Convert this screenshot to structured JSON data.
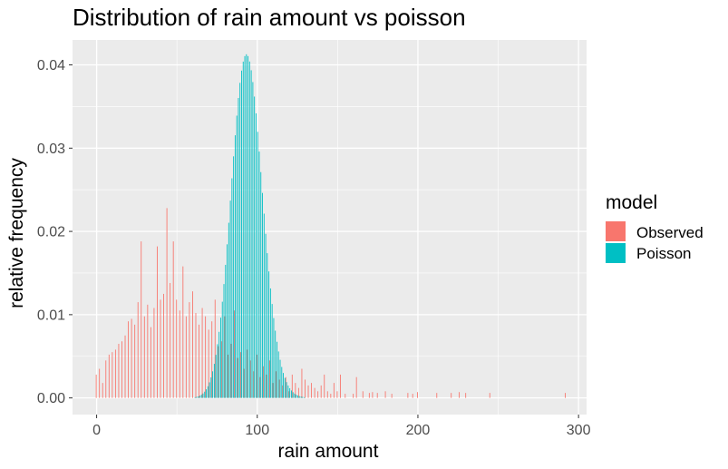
{
  "chart_data": {
    "type": "bar",
    "title": "Distribution of rain amount vs poisson",
    "xlabel": "rain amount",
    "ylabel": "relative frequency",
    "xlim": [
      -15,
      305
    ],
    "ylim": [
      -0.002,
      0.043
    ],
    "x_ticks": [
      0,
      100,
      200,
      300
    ],
    "x_tick_labels": [
      "0",
      "100",
      "200",
      "300"
    ],
    "y_ticks": [
      0.0,
      0.01,
      0.02,
      0.03,
      0.04
    ],
    "y_tick_labels": [
      "0.00",
      "0.01",
      "0.02",
      "0.03",
      "0.04"
    ],
    "grid": true,
    "position": "dodge",
    "legend": {
      "title": "model",
      "placement": "right"
    },
    "series": [
      {
        "name": "Observed",
        "color": "#F8766D",
        "points": [
          [
            0,
            0.0028
          ],
          [
            2,
            0.0035
          ],
          [
            4,
            0.0018
          ],
          [
            6,
            0.0045
          ],
          [
            8,
            0.0052
          ],
          [
            10,
            0.0055
          ],
          [
            12,
            0.0058
          ],
          [
            14,
            0.0065
          ],
          [
            16,
            0.0068
          ],
          [
            18,
            0.0075
          ],
          [
            20,
            0.0092
          ],
          [
            22,
            0.0095
          ],
          [
            24,
            0.0088
          ],
          [
            26,
            0.0115
          ],
          [
            28,
            0.0188
          ],
          [
            30,
            0.0098
          ],
          [
            32,
            0.0112
          ],
          [
            34,
            0.0085
          ],
          [
            36,
            0.0108
          ],
          [
            38,
            0.0182
          ],
          [
            40,
            0.0118
          ],
          [
            42,
            0.0125
          ],
          [
            44,
            0.0228
          ],
          [
            46,
            0.0138
          ],
          [
            48,
            0.0188
          ],
          [
            50,
            0.0118
          ],
          [
            52,
            0.0105
          ],
          [
            54,
            0.0158
          ],
          [
            56,
            0.0098
          ],
          [
            58,
            0.0115
          ],
          [
            60,
            0.0128
          ],
          [
            62,
            0.0102
          ],
          [
            64,
            0.0088
          ],
          [
            66,
            0.0108
          ],
          [
            68,
            0.0098
          ],
          [
            70,
            0.0082
          ],
          [
            72,
            0.0092
          ],
          [
            74,
            0.0118
          ],
          [
            76,
            0.0062
          ],
          [
            78,
            0.0068
          ],
          [
            80,
            0.0098
          ],
          [
            82,
            0.0052
          ],
          [
            84,
            0.0065
          ],
          [
            86,
            0.0105
          ],
          [
            88,
            0.0048
          ],
          [
            90,
            0.0055
          ],
          [
            92,
            0.0035
          ],
          [
            94,
            0.0058
          ],
          [
            96,
            0.0045
          ],
          [
            98,
            0.0032
          ],
          [
            100,
            0.0052
          ],
          [
            102,
            0.0025
          ],
          [
            104,
            0.0038
          ],
          [
            106,
            0.0028
          ],
          [
            108,
            0.0045
          ],
          [
            110,
            0.0018
          ],
          [
            112,
            0.0032
          ],
          [
            114,
            0.0022
          ],
          [
            116,
            0.0015
          ],
          [
            118,
            0.0025
          ],
          [
            120,
            0.0008
          ],
          [
            122,
            0.0028
          ],
          [
            124,
            0.0018
          ],
          [
            126,
            0.0012
          ],
          [
            128,
            0.0035
          ],
          [
            130,
            0.0022
          ],
          [
            132,
            0.0015
          ],
          [
            134,
            0.0018
          ],
          [
            136,
            0.0012
          ],
          [
            138,
            0.0008
          ],
          [
            140,
            0.0015
          ],
          [
            142,
            0.0028
          ],
          [
            144,
            0.0008
          ],
          [
            146,
            0.0005
          ],
          [
            148,
            0.0018
          ],
          [
            150,
            0.0008
          ],
          [
            152,
            0.0028
          ],
          [
            155,
            0.0005
          ],
          [
            160,
            0.0005
          ],
          [
            162,
            0.0025
          ],
          [
            166,
            0.0008
          ],
          [
            170,
            0.0006
          ],
          [
            172,
            0.0007
          ],
          [
            175,
            0.0006
          ],
          [
            180,
            0.0008
          ],
          [
            184,
            0.0005
          ],
          [
            194,
            0.0006
          ],
          [
            197,
            0.0005
          ],
          [
            200,
            0.0007
          ],
          [
            212,
            0.0006
          ],
          [
            221,
            0.0006
          ],
          [
            226,
            0.0007
          ],
          [
            230,
            0.0006
          ],
          [
            245,
            0.0006
          ],
          [
            292,
            0.0006
          ]
        ]
      },
      {
        "name": "Poisson",
        "color": "#00BFC4",
        "lambda": 93.5
      }
    ]
  }
}
